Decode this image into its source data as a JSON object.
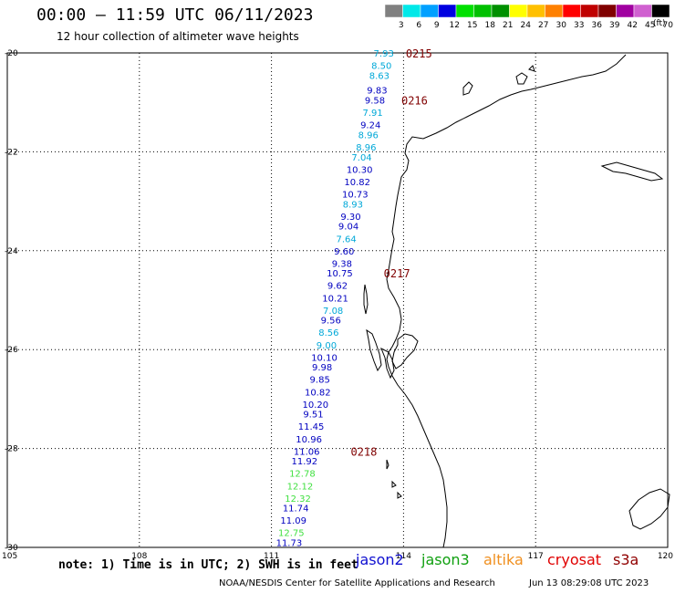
{
  "header": {
    "title": "00:00 – 11:59 UTC 06/11/2023",
    "subtitle": "12 hour collection of altimeter wave heights"
  },
  "footer": {
    "note": "note: 1) Time is in UTC; 2) SWH is in feet",
    "credits": "NOAA/NESDIS Center for Satellite Applications and Research",
    "timestamp": "Jun 13 08:29:08 UTC 2023"
  },
  "missions": [
    {
      "name": "jason2",
      "color": "#1010d0"
    },
    {
      "name": "jason3",
      "color": "#10a010"
    },
    {
      "name": "altika",
      "color": "#f09020"
    },
    {
      "name": "cryosat",
      "color": "#e00000"
    },
    {
      "name": "s3a",
      "color": "#900000"
    }
  ],
  "legend": {
    "units": "(ft)",
    "bins": [
      {
        "label": "3",
        "color": "#808080"
      },
      {
        "label": "6",
        "color": "#00e8e8"
      },
      {
        "label": "9",
        "color": "#00a0ff"
      },
      {
        "label": "12",
        "color": "#0000e0"
      },
      {
        "label": "15",
        "color": "#00e000"
      },
      {
        "label": "18",
        "color": "#00c000"
      },
      {
        "label": "21",
        "color": "#009000"
      },
      {
        "label": "24",
        "color": "#ffff00"
      },
      {
        "label": "27",
        "color": "#ffc000"
      },
      {
        "label": "30",
        "color": "#ff8000"
      },
      {
        "label": "33",
        "color": "#ff0000"
      },
      {
        "label": "36",
        "color": "#c00000"
      },
      {
        "label": "39",
        "color": "#800000"
      },
      {
        "label": "42",
        "color": "#a000a0"
      },
      {
        "label": "45",
        "color": "#d060d0"
      },
      {
        "label": "70",
        "color": "#000000"
      }
    ]
  },
  "chart_data": {
    "type": "scatter",
    "title": "12 hour collection of altimeter wave heights",
    "x_ticks": [
      "105",
      "108",
      "111",
      "114",
      "117",
      "120"
    ],
    "y_ticks": [
      "-20",
      "-22",
      "-24",
      "-26",
      "-28",
      "-30"
    ],
    "xlim": [
      105,
      120
    ],
    "ylim": [
      -30,
      -20
    ],
    "grid": true,
    "observations": [
      {
        "lon": 113.55,
        "lat": -20.0,
        "swh": "7.93",
        "color": "#00a8d8"
      },
      {
        "lon": 113.5,
        "lat": -20.25,
        "swh": "8.50",
        "color": "#00a8d8"
      },
      {
        "lon": 113.45,
        "lat": -20.45,
        "swh": "8.63",
        "color": "#00a8d8"
      },
      {
        "lon": 113.4,
        "lat": -20.75,
        "swh": "9.83",
        "color": "#0000c0"
      },
      {
        "lon": 113.35,
        "lat": -20.95,
        "swh": "9.58",
        "color": "#0000c0"
      },
      {
        "lon": 113.3,
        "lat": -21.2,
        "swh": "7.91",
        "color": "#00a8d8"
      },
      {
        "lon": 113.25,
        "lat": -21.45,
        "swh": "9.24",
        "color": "#0000c0"
      },
      {
        "lon": 113.2,
        "lat": -21.65,
        "swh": "8.96",
        "color": "#00a8d8"
      },
      {
        "lon": 113.15,
        "lat": -21.9,
        "swh": "8.96",
        "color": "#00a8d8"
      },
      {
        "lon": 113.05,
        "lat": -22.1,
        "swh": "7.04",
        "color": "#00a8d8"
      },
      {
        "lon": 113.0,
        "lat": -22.35,
        "swh": "10.30",
        "color": "#0000c0"
      },
      {
        "lon": 112.95,
        "lat": -22.6,
        "swh": "10.82",
        "color": "#0000c0"
      },
      {
        "lon": 112.9,
        "lat": -22.85,
        "swh": "10.73",
        "color": "#0000c0"
      },
      {
        "lon": 112.85,
        "lat": -23.05,
        "swh": "8.93",
        "color": "#00a8d8"
      },
      {
        "lon": 112.8,
        "lat": -23.3,
        "swh": "9.30",
        "color": "#0000c0"
      },
      {
        "lon": 112.75,
        "lat": -23.5,
        "swh": "9.04",
        "color": "#0000c0"
      },
      {
        "lon": 112.7,
        "lat": -23.75,
        "swh": "7.64",
        "color": "#00a8d8"
      },
      {
        "lon": 112.65,
        "lat": -24.0,
        "swh": "9.60",
        "color": "#0000c0"
      },
      {
        "lon": 112.6,
        "lat": -24.25,
        "swh": "9.38",
        "color": "#0000c0"
      },
      {
        "lon": 112.55,
        "lat": -24.45,
        "swh": "10.75",
        "color": "#0000c0"
      },
      {
        "lon": 112.5,
        "lat": -24.7,
        "swh": "9.62",
        "color": "#0000c0"
      },
      {
        "lon": 112.45,
        "lat": -24.95,
        "swh": "10.21",
        "color": "#0000c0"
      },
      {
        "lon": 112.4,
        "lat": -25.2,
        "swh": "7.08",
        "color": "#00a8d8"
      },
      {
        "lon": 112.35,
        "lat": -25.4,
        "swh": "9.56",
        "color": "#0000c0"
      },
      {
        "lon": 112.3,
        "lat": -25.65,
        "swh": "8.56",
        "color": "#00a8d8"
      },
      {
        "lon": 112.25,
        "lat": -25.9,
        "swh": "9.00",
        "color": "#00a8d8"
      },
      {
        "lon": 112.2,
        "lat": -26.15,
        "swh": "10.10",
        "color": "#0000c0"
      },
      {
        "lon": 112.15,
        "lat": -26.35,
        "swh": "9.98",
        "color": "#0000c0"
      },
      {
        "lon": 112.1,
        "lat": -26.6,
        "swh": "9.85",
        "color": "#0000c0"
      },
      {
        "lon": 112.05,
        "lat": -26.85,
        "swh": "10.82",
        "color": "#0000c0"
      },
      {
        "lon": 112.0,
        "lat": -27.1,
        "swh": "10.20",
        "color": "#0000c0"
      },
      {
        "lon": 111.95,
        "lat": -27.3,
        "swh": "9.51",
        "color": "#0000c0"
      },
      {
        "lon": 111.9,
        "lat": -27.55,
        "swh": "11.45",
        "color": "#0000c0"
      },
      {
        "lon": 111.85,
        "lat": -27.8,
        "swh": "10.96",
        "color": "#0000c0"
      },
      {
        "lon": 111.8,
        "lat": -28.05,
        "swh": "11.06",
        "color": "#0000c0"
      },
      {
        "lon": 111.75,
        "lat": -28.25,
        "swh": "11.92",
        "color": "#0000c0"
      },
      {
        "lon": 111.7,
        "lat": -28.5,
        "swh": "12.78",
        "color": "#40e040"
      },
      {
        "lon": 111.65,
        "lat": -28.75,
        "swh": "12.12",
        "color": "#40e040"
      },
      {
        "lon": 111.6,
        "lat": -29.0,
        "swh": "12.32",
        "color": "#40e040"
      },
      {
        "lon": 111.55,
        "lat": -29.2,
        "swh": "11.74",
        "color": "#0000c0"
      },
      {
        "lon": 111.5,
        "lat": -29.45,
        "swh": "11.09",
        "color": "#0000c0"
      },
      {
        "lon": 111.45,
        "lat": -29.7,
        "swh": "12.75",
        "color": "#40e040"
      },
      {
        "lon": 111.4,
        "lat": -29.9,
        "swh": "11.73",
        "color": "#0000c0"
      }
    ],
    "time_labels": [
      {
        "text": "0215",
        "lon": 114.05,
        "lat": -20.0
      },
      {
        "text": "0216",
        "lon": 113.95,
        "lat": -20.95
      },
      {
        "text": "0217",
        "lon": 113.55,
        "lat": -24.45
      },
      {
        "text": "0218",
        "lon": 112.8,
        "lat": -28.05
      }
    ]
  }
}
